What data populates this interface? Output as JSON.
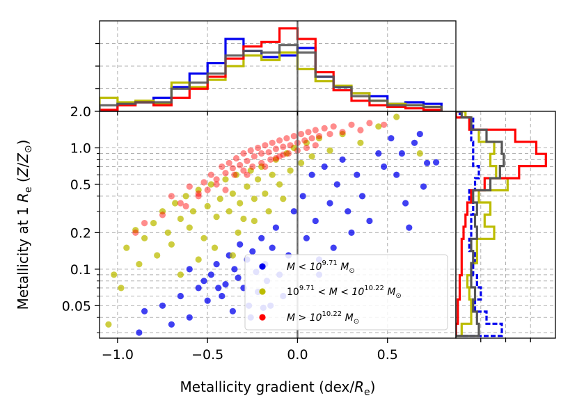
{
  "chart_data": [
    {
      "type": "scatter",
      "panel": "main",
      "xlabel": "Metallicity gradient (dex/R_e)",
      "ylabel": "Metallicity at 1 R_e (Z/Z_sun)",
      "xlim": [
        -1.1,
        0.88
      ],
      "ylim": [
        0.027,
        2.0
      ],
      "yscale": "log",
      "xticks": [
        -1.0,
        -0.5,
        0.0,
        0.5
      ],
      "xtick_labels": [
        "−1.0",
        "−0.5",
        "0.0",
        "0.5"
      ],
      "yticks": [
        0.05,
        0.1,
        0.2,
        0.5,
        1.0,
        2.0
      ],
      "ytick_labels": [
        "0.05",
        "0.1",
        "0.2",
        "0.5",
        "1.0",
        "2.0"
      ],
      "vertical_line_x": 0.0,
      "legend_position": "lower-right",
      "series": [
        {
          "name": "low_mass",
          "color": "#0000ee",
          "points": [
            [
              -0.88,
              0.03
            ],
            [
              -0.85,
              0.045
            ],
            [
              -0.75,
              0.05
            ],
            [
              -0.7,
              0.035
            ],
            [
              -0.65,
              0.06
            ],
            [
              -0.6,
              0.04
            ],
            [
              -0.55,
              0.07
            ],
            [
              -0.5,
              0.055
            ],
            [
              -0.48,
              0.09
            ],
            [
              -0.45,
              0.11
            ],
            [
              -0.42,
              0.06
            ],
            [
              -0.4,
              0.075
            ],
            [
              -0.38,
              0.13
            ],
            [
              -0.36,
              0.045
            ],
            [
              -0.35,
              0.1
            ],
            [
              -0.33,
              0.085
            ],
            [
              -0.32,
              0.16
            ],
            [
              -0.3,
              0.07
            ],
            [
              -0.28,
              0.12
            ],
            [
              -0.27,
              0.05
            ],
            [
              -0.25,
              0.14
            ],
            [
              -0.23,
              0.095
            ],
            [
              -0.22,
              0.065
            ],
            [
              -0.2,
              0.18
            ],
            [
              -0.18,
              0.11
            ],
            [
              -0.17,
              0.08
            ],
            [
              -0.15,
              0.05
            ],
            [
              -0.14,
              0.15
            ],
            [
              -0.12,
              0.22
            ],
            [
              -0.1,
              0.09
            ],
            [
              -0.08,
              0.06
            ],
            [
              -0.05,
              0.13
            ],
            [
              -0.02,
              0.3
            ],
            [
              0.03,
              0.4
            ],
            [
              0.05,
              0.18
            ],
            [
              0.08,
              0.6
            ],
            [
              0.1,
              0.25
            ],
            [
              0.12,
              0.09
            ],
            [
              0.15,
              0.7
            ],
            [
              0.18,
              0.35
            ],
            [
              0.2,
              0.15
            ],
            [
              0.22,
              0.5
            ],
            [
              0.25,
              0.8
            ],
            [
              0.28,
              0.3
            ],
            [
              0.3,
              0.2
            ],
            [
              0.33,
              0.6
            ],
            [
              0.36,
              0.4
            ],
            [
              0.4,
              0.25
            ],
            [
              0.45,
              0.9
            ],
            [
              0.48,
              0.7
            ],
            [
              0.52,
              1.2
            ],
            [
              0.55,
              0.6
            ],
            [
              0.58,
              0.9
            ],
            [
              0.6,
              0.35
            ],
            [
              0.62,
              0.22
            ],
            [
              0.65,
              1.1
            ],
            [
              0.7,
              0.48
            ],
            [
              0.72,
              0.75
            ],
            [
              0.77,
              0.76
            ],
            [
              0.68,
              1.3
            ],
            [
              -0.6,
              0.1
            ],
            [
              -0.52,
              0.08
            ],
            [
              -0.44,
              0.07
            ],
            [
              -0.26,
              0.04
            ],
            [
              -0.19,
              0.048
            ],
            [
              0.12,
              0.12
            ]
          ]
        },
        {
          "name": "mid_mass",
          "color": "#bcbc00",
          "points": [
            [
              -1.05,
              0.035
            ],
            [
              -1.02,
              0.09
            ],
            [
              -0.98,
              0.07
            ],
            [
              -0.95,
              0.15
            ],
            [
              -0.9,
              0.21
            ],
            [
              -0.88,
              0.11
            ],
            [
              -0.85,
              0.18
            ],
            [
              -0.8,
              0.24
            ],
            [
              -0.78,
              0.13
            ],
            [
              -0.75,
              0.3
            ],
            [
              -0.72,
              0.2
            ],
            [
              -0.7,
              0.16
            ],
            [
              -0.68,
              0.35
            ],
            [
              -0.65,
              0.26
            ],
            [
              -0.62,
              0.4
            ],
            [
              -0.6,
              0.22
            ],
            [
              -0.58,
              0.3
            ],
            [
              -0.55,
              0.45
            ],
            [
              -0.52,
              0.18
            ],
            [
              -0.5,
              0.33
            ],
            [
              -0.48,
              0.5
            ],
            [
              -0.45,
              0.27
            ],
            [
              -0.43,
              0.38
            ],
            [
              -0.4,
              0.55
            ],
            [
              -0.38,
              0.3
            ],
            [
              -0.36,
              0.42
            ],
            [
              -0.34,
              0.6
            ],
            [
              -0.32,
              0.35
            ],
            [
              -0.3,
              0.26
            ],
            [
              -0.28,
              0.48
            ],
            [
              -0.26,
              0.65
            ],
            [
              -0.24,
              0.38
            ],
            [
              -0.22,
              0.55
            ],
            [
              -0.2,
              0.7
            ],
            [
              -0.18,
              0.42
            ],
            [
              -0.16,
              0.3
            ],
            [
              -0.14,
              0.6
            ],
            [
              -0.12,
              0.8
            ],
            [
              -0.1,
              0.5
            ],
            [
              -0.08,
              0.38
            ],
            [
              -0.06,
              0.9
            ],
            [
              -0.04,
              0.65
            ],
            [
              -0.02,
              1.0
            ],
            [
              0.02,
              0.75
            ],
            [
              0.05,
              1.1
            ],
            [
              0.08,
              0.85
            ],
            [
              0.12,
              1.2
            ],
            [
              0.18,
              0.95
            ],
            [
              0.25,
              1.3
            ],
            [
              0.35,
              1.1
            ],
            [
              0.45,
              1.5
            ],
            [
              0.55,
              1.8
            ],
            [
              0.68,
              0.9
            ],
            [
              -0.55,
              0.12
            ],
            [
              -0.65,
              0.09
            ],
            [
              -0.46,
              0.15
            ],
            [
              -0.33,
              0.2
            ],
            [
              -0.24,
              0.25
            ],
            [
              -0.36,
              0.13
            ]
          ]
        },
        {
          "name": "high_mass",
          "color": "#ff0000",
          "points": [
            [
              -0.7,
              0.4
            ],
            [
              -0.65,
              0.35
            ],
            [
              -0.6,
              0.48
            ],
            [
              -0.55,
              0.42
            ],
            [
              -0.52,
              0.52
            ],
            [
              -0.5,
              0.45
            ],
            [
              -0.48,
              0.6
            ],
            [
              -0.45,
              0.55
            ],
            [
              -0.42,
              0.7
            ],
            [
              -0.4,
              0.62
            ],
            [
              -0.38,
              0.75
            ],
            [
              -0.36,
              0.68
            ],
            [
              -0.34,
              0.82
            ],
            [
              -0.32,
              0.72
            ],
            [
              -0.3,
              0.9
            ],
            [
              -0.28,
              0.78
            ],
            [
              -0.26,
              0.95
            ],
            [
              -0.24,
              0.85
            ],
            [
              -0.22,
              1.0
            ],
            [
              -0.2,
              0.9
            ],
            [
              -0.18,
              1.05
            ],
            [
              -0.16,
              0.92
            ],
            [
              -0.14,
              1.1
            ],
            [
              -0.12,
              0.98
            ],
            [
              -0.1,
              1.15
            ],
            [
              -0.08,
              1.02
            ],
            [
              -0.06,
              1.2
            ],
            [
              -0.04,
              1.05
            ],
            [
              -0.02,
              1.25
            ],
            [
              0.0,
              1.1
            ],
            [
              0.02,
              1.3
            ],
            [
              0.04,
              1.15
            ],
            [
              0.06,
              1.35
            ],
            [
              0.08,
              1.2
            ],
            [
              0.1,
              1.4
            ],
            [
              0.12,
              1.25
            ],
            [
              0.15,
              1.45
            ],
            [
              0.18,
              1.3
            ],
            [
              0.2,
              1.5
            ],
            [
              0.25,
              1.35
            ],
            [
              0.3,
              1.55
            ],
            [
              0.35,
              1.4
            ],
            [
              0.4,
              1.6
            ],
            [
              0.48,
              1.55
            ],
            [
              -0.35,
              0.6
            ],
            [
              -0.3,
              0.65
            ],
            [
              -0.25,
              0.7
            ],
            [
              -0.2,
              0.75
            ],
            [
              -0.15,
              0.8
            ],
            [
              -0.1,
              0.85
            ],
            [
              -0.05,
              0.9
            ],
            [
              0.0,
              0.95
            ],
            [
              -0.45,
              0.5
            ],
            [
              -0.55,
              0.4
            ],
            [
              -0.62,
              0.33
            ],
            [
              -0.75,
              0.28
            ],
            [
              -0.85,
              0.24
            ],
            [
              -0.9,
              0.2
            ],
            [
              -0.4,
              0.45
            ],
            [
              -0.28,
              0.6
            ],
            [
              -0.18,
              0.7
            ],
            [
              -0.12,
              0.82
            ],
            [
              -0.08,
              0.88
            ],
            [
              0.05,
              1.0
            ],
            [
              0.1,
              1.05
            ]
          ]
        }
      ],
      "legend": [
        {
          "symbol_color": "#0000ee",
          "text_parts": [
            "M < 10",
            "9.71",
            " M",
            "⊙"
          ]
        },
        {
          "symbol_color": "#bcbc00",
          "text_parts": [
            "10",
            "9.71",
            " < M < 10",
            "10.22",
            " M",
            "⊙"
          ]
        },
        {
          "symbol_color": "#ff0000",
          "text_parts": [
            "M > 10",
            "10.22",
            " M",
            "⊙"
          ]
        }
      ]
    },
    {
      "type": "histogram",
      "panel": "top",
      "orientation": "vertical",
      "xlim": [
        -1.1,
        0.88
      ],
      "bin_edges": [
        -1.1,
        -1.0,
        -0.9,
        -0.8,
        -0.7,
        -0.6,
        -0.5,
        -0.4,
        -0.3,
        -0.2,
        -0.1,
        0.0,
        0.1,
        0.2,
        0.3,
        0.4,
        0.5,
        0.6,
        0.7,
        0.8
      ],
      "series": [
        {
          "name": "low_mass",
          "color": "#0000ee",
          "counts": [
            0.0,
            0.5,
            0.6,
            0.9,
            1.6,
            2.5,
            3.2,
            4.8,
            4.0,
            3.6,
            3.7,
            4.2,
            2.3,
            1.6,
            1.2,
            1.0,
            0.5,
            0.6,
            0.5
          ]
        },
        {
          "name": "mid_mass",
          "color": "#bcbc00",
          "counts": [
            0.9,
            0.6,
            0.7,
            0.5,
            1.9,
            1.6,
            2.1,
            3.0,
            3.7,
            3.4,
            3.9,
            2.8,
            2.0,
            1.7,
            1.2,
            0.7,
            0.5,
            0.4,
            0.3
          ]
        },
        {
          "name": "high_mass",
          "color": "#ff0000",
          "counts": [
            0.1,
            0.4,
            0.6,
            0.4,
            0.9,
            1.5,
            2.3,
            3.5,
            4.3,
            4.6,
            5.5,
            4.8,
            2.6,
            1.4,
            0.7,
            0.4,
            0.3,
            0.2,
            0.1
          ]
        },
        {
          "name": "all",
          "color": "#555555",
          "counts": [
            0.4,
            0.5,
            0.6,
            0.6,
            1.5,
            1.9,
            2.5,
            3.7,
            4.0,
            3.9,
            4.4,
            3.9,
            2.3,
            1.6,
            1.0,
            0.7,
            0.4,
            0.4,
            0.3
          ]
        }
      ]
    },
    {
      "type": "histogram",
      "panel": "right",
      "orientation": "horizontal",
      "ylim": [
        0.027,
        2.0
      ],
      "yscale": "log",
      "bin_edges_log10": [
        -1.55,
        -1.45,
        -1.35,
        -1.25,
        -1.15,
        -1.05,
        -0.95,
        -0.85,
        -0.75,
        -0.65,
        -0.55,
        -0.45,
        -0.35,
        -0.25,
        -0.15,
        -0.05,
        0.05,
        0.15,
        0.25,
        0.3
      ],
      "series": [
        {
          "name": "low_mass",
          "color": "#0000ee",
          "counts": [
            2.4,
            1.6,
            1.0,
            1.3,
            1.1,
            0.9,
            1.0,
            0.7,
            0.8,
            0.8,
            0.9,
            0.7,
            1.0,
            1.2,
            0.9,
            0.9,
            0.8,
            0.9,
            0.2
          ]
        },
        {
          "name": "mid_mass",
          "color": "#bcbc00",
          "counts": [
            0.3,
            0.8,
            0.8,
            0.7,
            0.6,
            0.8,
            1.1,
            1.1,
            2.0,
            1.5,
            1.8,
            1.2,
            2.7,
            2.1,
            1.8,
            2.0,
            1.2,
            0.8,
            0.5
          ]
        },
        {
          "name": "high_mass",
          "color": "#ff0000",
          "counts": [
            0.0,
            0.1,
            0.1,
            0.2,
            0.2,
            0.3,
            0.3,
            0.3,
            0.4,
            0.5,
            0.6,
            0.8,
            1.5,
            3.3,
            4.7,
            4.2,
            3.1,
            0.7,
            0.0
          ]
        },
        {
          "name": "all",
          "color": "#555555",
          "counts": [
            1.2,
            1.1,
            0.9,
            1.0,
            0.8,
            0.8,
            0.9,
            0.8,
            1.1,
            1.0,
            1.1,
            0.9,
            1.8,
            2.3,
            2.5,
            2.4,
            1.6,
            0.8,
            0.3
          ]
        }
      ]
    }
  ]
}
